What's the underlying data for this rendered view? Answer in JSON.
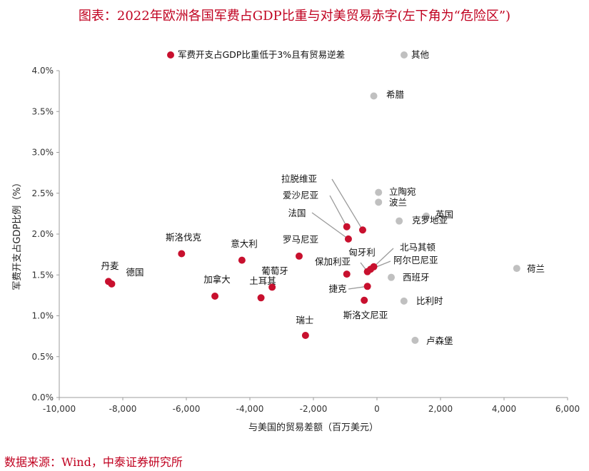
{
  "title": "图表：2022年欧洲各国军费占GDP比重与对美贸易赤字(左下角为“危险区”)",
  "source": "数据来源：Wind，中泰证券研究所",
  "chart_data": {
    "type": "scatter",
    "xlabel": "与美国的贸易差额（百万美元）",
    "ylabel": "军费开支占GDP比例（%）",
    "xlim": [
      -10000,
      6000
    ],
    "ylim": [
      0,
      4.0
    ],
    "x_ticks": [
      "-10,000",
      "-8,000",
      "-6,000",
      "-4,000",
      "-2,000",
      "0",
      "2,000",
      "4,000",
      "6,000"
    ],
    "y_ticks": [
      "0.0%",
      "0.5%",
      "1.0%",
      "1.5%",
      "2.0%",
      "2.5%",
      "3.0%",
      "3.5%",
      "4.0%"
    ],
    "grid": false,
    "legend_position": "top",
    "colors": {
      "red": "#c8102e",
      "gray": "#c0c0c0",
      "leader": "#9a9a9a"
    },
    "series": [
      {
        "name": "军费开支占GDP比重低于3%且有贸易逆差",
        "color": "red",
        "points": [
          {
            "label": "丹麦",
            "x": -8450,
            "y": 1.42
          },
          {
            "label": "德国",
            "x": -8350,
            "y": 1.39
          },
          {
            "label": "斯洛伐克",
            "x": -6150,
            "y": 1.76
          },
          {
            "label": "加拿大",
            "x": -5100,
            "y": 1.24
          },
          {
            "label": "意大利",
            "x": -4250,
            "y": 1.68
          },
          {
            "label": "土耳其",
            "x": -3650,
            "y": 1.22
          },
          {
            "label": "葡萄牙",
            "x": -3300,
            "y": 1.35
          },
          {
            "label": "罗马尼亚",
            "x": -2450,
            "y": 1.73
          },
          {
            "label": "瑞士",
            "x": -2250,
            "y": 0.76
          },
          {
            "label": "保加利亚",
            "x": -950,
            "y": 1.51
          },
          {
            "label": "拉脱维亚",
            "x": -450,
            "y": 2.05
          },
          {
            "label": "爱沙尼亚",
            "x": -950,
            "y": 2.09
          },
          {
            "label": "法国",
            "x": -900,
            "y": 1.94
          },
          {
            "label": "捷克",
            "x": -300,
            "y": 1.36
          },
          {
            "label": "斯洛文尼亚",
            "x": -400,
            "y": 1.19
          },
          {
            "label": "匈牙利",
            "x": -300,
            "y": 1.54
          },
          {
            "label": "北马其顿",
            "x": -100,
            "y": 1.6
          },
          {
            "label": "阿尔巴尼亚",
            "x": -200,
            "y": 1.57
          }
        ]
      },
      {
        "name": "其他",
        "color": "gray",
        "points": [
          {
            "label": "希腊",
            "x": -100,
            "y": 3.69
          },
          {
            "label": "立陶宛",
            "x": 50,
            "y": 2.51
          },
          {
            "label": "波兰",
            "x": 50,
            "y": 2.39
          },
          {
            "label": "英国",
            "x": 1550,
            "y": 2.22
          },
          {
            "label": "克罗地亚",
            "x": 700,
            "y": 2.16
          },
          {
            "label": "西班牙",
            "x": 450,
            "y": 1.47
          },
          {
            "label": "比利时",
            "x": 850,
            "y": 1.18
          },
          {
            "label": "卢森堡",
            "x": 1200,
            "y": 0.7
          },
          {
            "label": "荷兰",
            "x": 4400,
            "y": 1.58
          }
        ]
      }
    ]
  }
}
